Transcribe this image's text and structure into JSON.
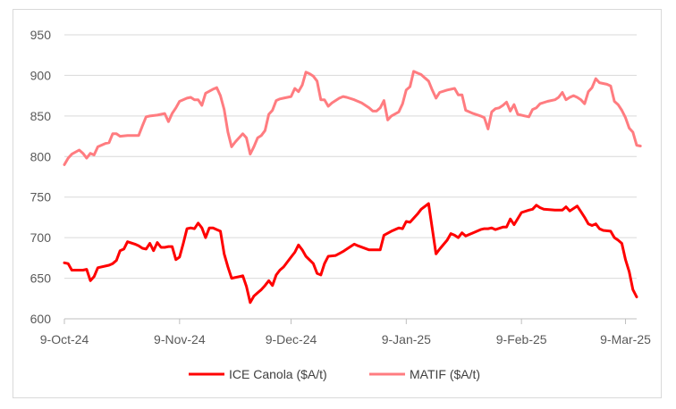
{
  "chart_data": {
    "type": "line",
    "title": "",
    "xlabel": "",
    "ylabel": "",
    "ylim": [
      600,
      950
    ],
    "yticks": [
      600,
      650,
      700,
      750,
      800,
      850,
      900,
      950
    ],
    "x_start": "2024-10-09",
    "x_end": "2025-03-12",
    "xticks": [
      {
        "date": "2024-10-09",
        "label": "9-Oct-24"
      },
      {
        "date": "2024-11-09",
        "label": "9-Nov-24"
      },
      {
        "date": "2024-12-09",
        "label": "9-Dec-24"
      },
      {
        "date": "2025-01-09",
        "label": "9-Jan-25"
      },
      {
        "date": "2025-02-09",
        "label": "9-Feb-25"
      },
      {
        "date": "2025-03-09",
        "label": "9-Mar-25"
      }
    ],
    "grid": "horizontal",
    "legend_position": "bottom",
    "series": [
      {
        "name": "ICE Canola ($A/t)",
        "color": "#ff0000",
        "points": [
          [
            "2024-10-09",
            669
          ],
          [
            "2024-10-10",
            668
          ],
          [
            "2024-10-11",
            660
          ],
          [
            "2024-10-14",
            660
          ],
          [
            "2024-10-15",
            661
          ],
          [
            "2024-10-16",
            647
          ],
          [
            "2024-10-17",
            652
          ],
          [
            "2024-10-18",
            663
          ],
          [
            "2024-10-21",
            666
          ],
          [
            "2024-10-22",
            668
          ],
          [
            "2024-10-23",
            672
          ],
          [
            "2024-10-24",
            684
          ],
          [
            "2024-10-25",
            686
          ],
          [
            "2024-10-26",
            695
          ],
          [
            "2024-10-28",
            692
          ],
          [
            "2024-10-29",
            690
          ],
          [
            "2024-10-30",
            687
          ],
          [
            "2024-10-31",
            686
          ],
          [
            "2024-11-01",
            693
          ],
          [
            "2024-11-02",
            684
          ],
          [
            "2024-11-03",
            694
          ],
          [
            "2024-11-04",
            688
          ],
          [
            "2024-11-05",
            688
          ],
          [
            "2024-11-06",
            689
          ],
          [
            "2024-11-07",
            689
          ],
          [
            "2024-11-08",
            673
          ],
          [
            "2024-11-09",
            676
          ],
          [
            "2024-11-10",
            693
          ],
          [
            "2024-11-11",
            711
          ],
          [
            "2024-11-12",
            712
          ],
          [
            "2024-11-13",
            711
          ],
          [
            "2024-11-14",
            718
          ],
          [
            "2024-11-15",
            712
          ],
          [
            "2024-11-16",
            700
          ],
          [
            "2024-11-17",
            712
          ],
          [
            "2024-11-18",
            712
          ],
          [
            "2024-11-19",
            710
          ],
          [
            "2024-11-20",
            708
          ],
          [
            "2024-11-21",
            680
          ],
          [
            "2024-11-22",
            664
          ],
          [
            "2024-11-23",
            650
          ],
          [
            "2024-11-25",
            652
          ],
          [
            "2024-11-26",
            653
          ],
          [
            "2024-11-27",
            640
          ],
          [
            "2024-11-28",
            620
          ],
          [
            "2024-11-29",
            628
          ],
          [
            "2024-11-30",
            632
          ],
          [
            "2024-12-01",
            636
          ],
          [
            "2024-12-02",
            641
          ],
          [
            "2024-12-03",
            647
          ],
          [
            "2024-12-04",
            641
          ],
          [
            "2024-12-05",
            654
          ],
          [
            "2024-12-06",
            660
          ],
          [
            "2024-12-07",
            664
          ],
          [
            "2024-12-09",
            676
          ],
          [
            "2024-12-10",
            682
          ],
          [
            "2024-12-11",
            691
          ],
          [
            "2024-12-12",
            685
          ],
          [
            "2024-12-13",
            677
          ],
          [
            "2024-12-15",
            668
          ],
          [
            "2024-12-16",
            656
          ],
          [
            "2024-12-17",
            654
          ],
          [
            "2024-12-18",
            668
          ],
          [
            "2024-12-19",
            677
          ],
          [
            "2024-12-21",
            678
          ],
          [
            "2024-12-23",
            683
          ],
          [
            "2024-12-24",
            686
          ],
          [
            "2024-12-26",
            692
          ],
          [
            "2024-12-27",
            690
          ],
          [
            "2024-12-30",
            685
          ],
          [
            "2024-12-31",
            685
          ],
          [
            "2025-01-02",
            685
          ],
          [
            "2025-01-03",
            703
          ],
          [
            "2025-01-05",
            708
          ],
          [
            "2025-01-07",
            712
          ],
          [
            "2025-01-08",
            711
          ],
          [
            "2025-01-09",
            720
          ],
          [
            "2025-01-10",
            719
          ],
          [
            "2025-01-12",
            729
          ],
          [
            "2025-01-13",
            735
          ],
          [
            "2025-01-15",
            742
          ],
          [
            "2025-01-17",
            680
          ],
          [
            "2025-01-18",
            686
          ],
          [
            "2025-01-20",
            697
          ],
          [
            "2025-01-21",
            705
          ],
          [
            "2025-01-22",
            703
          ],
          [
            "2025-01-23",
            700
          ],
          [
            "2025-01-24",
            706
          ],
          [
            "2025-01-25",
            702
          ],
          [
            "2025-01-27",
            706
          ],
          [
            "2025-01-29",
            710
          ],
          [
            "2025-01-30",
            711
          ],
          [
            "2025-01-31",
            711
          ],
          [
            "2025-02-01",
            712
          ],
          [
            "2025-02-02",
            710
          ],
          [
            "2025-02-04",
            713
          ],
          [
            "2025-02-05",
            713
          ],
          [
            "2025-02-06",
            723
          ],
          [
            "2025-02-07",
            716
          ],
          [
            "2025-02-09",
            731
          ],
          [
            "2025-02-11",
            734
          ],
          [
            "2025-02-12",
            735
          ],
          [
            "2025-02-13",
            740
          ],
          [
            "2025-02-14",
            737
          ],
          [
            "2025-02-15",
            735
          ],
          [
            "2025-02-18",
            734
          ],
          [
            "2025-02-20",
            734
          ],
          [
            "2025-02-21",
            738
          ],
          [
            "2025-02-22",
            733
          ],
          [
            "2025-02-24",
            739
          ],
          [
            "2025-02-25",
            732
          ],
          [
            "2025-02-26",
            725
          ],
          [
            "2025-02-27",
            717
          ],
          [
            "2025-02-28",
            715
          ],
          [
            "2025-03-01",
            717
          ],
          [
            "2025-03-02",
            711
          ],
          [
            "2025-03-03",
            709
          ],
          [
            "2025-03-05",
            708
          ],
          [
            "2025-03-06",
            700
          ],
          [
            "2025-03-07",
            697
          ],
          [
            "2025-03-08",
            693
          ],
          [
            "2025-03-09",
            673
          ],
          [
            "2025-03-10",
            658
          ],
          [
            "2025-03-11",
            636
          ],
          [
            "2025-03-12",
            627
          ]
        ]
      },
      {
        "name": "MATIF ($A/t)",
        "color": "#ff7c80",
        "points": [
          [
            "2024-10-09",
            790
          ],
          [
            "2024-10-10",
            798
          ],
          [
            "2024-10-11",
            803
          ],
          [
            "2024-10-13",
            808
          ],
          [
            "2024-10-14",
            804
          ],
          [
            "2024-10-15",
            798
          ],
          [
            "2024-10-16",
            804
          ],
          [
            "2024-10-17",
            802
          ],
          [
            "2024-10-18",
            812
          ],
          [
            "2024-10-20",
            816
          ],
          [
            "2024-10-21",
            817
          ],
          [
            "2024-10-22",
            828
          ],
          [
            "2024-10-23",
            828
          ],
          [
            "2024-10-24",
            825
          ],
          [
            "2024-10-26",
            826
          ],
          [
            "2024-10-28",
            826
          ],
          [
            "2024-10-29",
            826
          ],
          [
            "2024-10-30",
            838
          ],
          [
            "2024-10-31",
            849
          ],
          [
            "2024-11-01",
            850
          ],
          [
            "2024-11-03",
            851
          ],
          [
            "2024-11-05",
            853
          ],
          [
            "2024-11-06",
            843
          ],
          [
            "2024-11-07",
            853
          ],
          [
            "2024-11-08",
            860
          ],
          [
            "2024-11-09",
            868
          ],
          [
            "2024-11-11",
            872
          ],
          [
            "2024-11-12",
            873
          ],
          [
            "2024-11-13",
            870
          ],
          [
            "2024-11-14",
            870
          ],
          [
            "2024-11-15",
            863
          ],
          [
            "2024-11-16",
            878
          ],
          [
            "2024-11-18",
            883
          ],
          [
            "2024-11-19",
            885
          ],
          [
            "2024-11-20",
            875
          ],
          [
            "2024-11-21",
            858
          ],
          [
            "2024-11-22",
            830
          ],
          [
            "2024-11-23",
            812
          ],
          [
            "2024-11-24",
            818
          ],
          [
            "2024-11-26",
            828
          ],
          [
            "2024-11-27",
            823
          ],
          [
            "2024-11-28",
            803
          ],
          [
            "2024-11-29",
            812
          ],
          [
            "2024-11-30",
            823
          ],
          [
            "2024-12-01",
            826
          ],
          [
            "2024-12-02",
            832
          ],
          [
            "2024-12-03",
            852
          ],
          [
            "2024-12-04",
            857
          ],
          [
            "2024-12-05",
            869
          ],
          [
            "2024-12-06",
            871
          ],
          [
            "2024-12-07",
            872
          ],
          [
            "2024-12-09",
            874
          ],
          [
            "2024-12-10",
            884
          ],
          [
            "2024-12-11",
            880
          ],
          [
            "2024-12-12",
            888
          ],
          [
            "2024-12-13",
            904
          ],
          [
            "2024-12-14",
            902
          ],
          [
            "2024-12-15",
            899
          ],
          [
            "2024-12-16",
            893
          ],
          [
            "2024-12-17",
            870
          ],
          [
            "2024-12-18",
            870
          ],
          [
            "2024-12-19",
            862
          ],
          [
            "2024-12-20",
            866
          ],
          [
            "2024-12-22",
            872
          ],
          [
            "2024-12-23",
            874
          ],
          [
            "2024-12-24",
            873
          ],
          [
            "2024-12-26",
            870
          ],
          [
            "2024-12-28",
            866
          ],
          [
            "2024-12-30",
            860
          ],
          [
            "2024-12-31",
            856
          ],
          [
            "2025-01-01",
            856
          ],
          [
            "2025-01-02",
            860
          ],
          [
            "2025-01-03",
            869
          ],
          [
            "2025-01-04",
            845
          ],
          [
            "2025-01-05",
            850
          ],
          [
            "2025-01-07",
            855
          ],
          [
            "2025-01-08",
            865
          ],
          [
            "2025-01-09",
            882
          ],
          [
            "2025-01-10",
            886
          ],
          [
            "2025-01-11",
            905
          ],
          [
            "2025-01-12",
            903
          ],
          [
            "2025-01-13",
            901
          ],
          [
            "2025-01-14",
            897
          ],
          [
            "2025-01-15",
            893
          ],
          [
            "2025-01-16",
            882
          ],
          [
            "2025-01-17",
            872
          ],
          [
            "2025-01-18",
            879
          ],
          [
            "2025-01-20",
            882
          ],
          [
            "2025-01-22",
            884
          ],
          [
            "2025-01-23",
            876
          ],
          [
            "2025-01-24",
            876
          ],
          [
            "2025-01-25",
            857
          ],
          [
            "2025-01-27",
            853
          ],
          [
            "2025-01-29",
            850
          ],
          [
            "2025-01-30",
            848
          ],
          [
            "2025-01-31",
            834
          ],
          [
            "2025-02-01",
            855
          ],
          [
            "2025-02-02",
            859
          ],
          [
            "2025-02-03",
            860
          ],
          [
            "2025-02-04",
            863
          ],
          [
            "2025-02-05",
            867
          ],
          [
            "2025-02-06",
            856
          ],
          [
            "2025-02-07",
            864
          ],
          [
            "2025-02-08",
            852
          ],
          [
            "2025-02-10",
            850
          ],
          [
            "2025-02-11",
            849
          ],
          [
            "2025-02-12",
            858
          ],
          [
            "2025-02-13",
            860
          ],
          [
            "2025-02-14",
            865
          ],
          [
            "2025-02-16",
            868
          ],
          [
            "2025-02-18",
            870
          ],
          [
            "2025-02-19",
            873
          ],
          [
            "2025-02-20",
            879
          ],
          [
            "2025-02-21",
            870
          ],
          [
            "2025-02-22",
            873
          ],
          [
            "2025-02-23",
            875
          ],
          [
            "2025-02-24",
            873
          ],
          [
            "2025-02-25",
            870
          ],
          [
            "2025-02-26",
            865
          ],
          [
            "2025-02-27",
            880
          ],
          [
            "2025-02-28",
            885
          ],
          [
            "2025-03-01",
            896
          ],
          [
            "2025-03-02",
            891
          ],
          [
            "2025-03-04",
            889
          ],
          [
            "2025-03-05",
            887
          ],
          [
            "2025-03-06",
            868
          ],
          [
            "2025-03-07",
            864
          ],
          [
            "2025-03-08",
            857
          ],
          [
            "2025-03-09",
            848
          ],
          [
            "2025-03-10",
            835
          ],
          [
            "2025-03-11",
            830
          ],
          [
            "2025-03-12",
            814
          ],
          [
            "2025-03-13",
            813
          ]
        ]
      }
    ]
  }
}
